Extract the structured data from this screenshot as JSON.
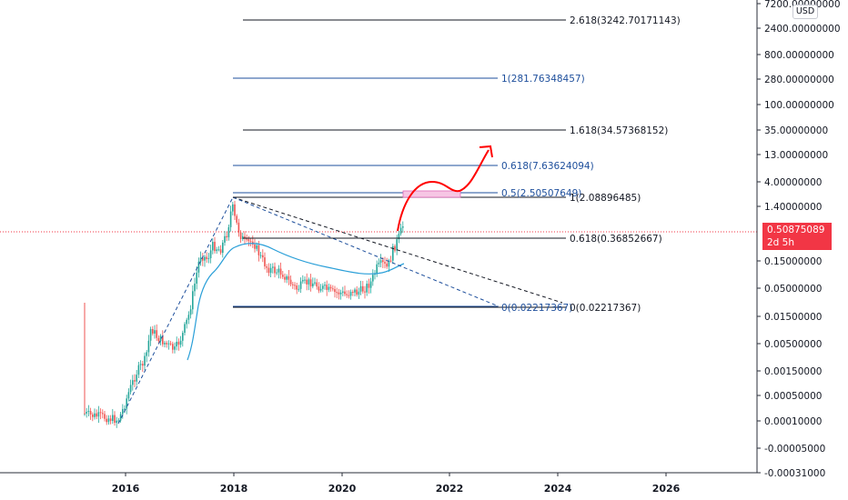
{
  "header": {
    "currency": "USD"
  },
  "price_tag": {
    "price": "0.50875089",
    "countdown": "2d 5h"
  },
  "chart_data": {
    "type": "candlestick",
    "yscale": "log",
    "y_axis_ticks": [
      {
        "label": "7200.00000000",
        "value": 7200
      },
      {
        "label": "2400.00000000",
        "value": 2400
      },
      {
        "label": "800.00000000",
        "value": 800
      },
      {
        "label": "280.00000000",
        "value": 280
      },
      {
        "label": "100.00000000",
        "value": 100
      },
      {
        "label": "35.00000000",
        "value": 35
      },
      {
        "label": "13.00000000",
        "value": 13
      },
      {
        "label": "4.00000000",
        "value": 4
      },
      {
        "label": "1.40000000",
        "value": 1.4
      },
      {
        "label": "0.15000000",
        "value": 0.15
      },
      {
        "label": "0.05000000",
        "value": 0.05
      },
      {
        "label": "0.01500000",
        "value": 0.015
      },
      {
        "label": "0.00500000",
        "value": 0.005
      },
      {
        "label": "0.00150000",
        "value": 0.0015
      },
      {
        "label": "0.00050000",
        "value": 0.0005
      },
      {
        "label": "0.00010000",
        "value": 0.0001
      },
      {
        "label": "-0.00005000",
        "value": -5e-05
      },
      {
        "label": "-0.00031000",
        "value": -0.00031
      }
    ],
    "x_axis_ticks": [
      "2016",
      "2018",
      "2020",
      "2022",
      "2024",
      "2026"
    ],
    "last_price": 0.50875089,
    "fib_levels": [
      {
        "label": "2.618(3242.70171143)",
        "color": "#131722"
      },
      {
        "label": "1(281.76348457)",
        "color": "#1e4f9c"
      },
      {
        "label": "1.618(34.57368152)",
        "color": "#131722"
      },
      {
        "label": "0.618(7.63624094)",
        "color": "#1e4f9c"
      },
      {
        "label": "0.5(2.50507649)",
        "color": "#1e4f9c"
      },
      {
        "label": "1(2.08896485)",
        "color": "#131722"
      },
      {
        "label": "0.618(0.36852667)",
        "color": "#131722"
      },
      {
        "label": "0(0.02217367)",
        "color": "#1e4f9c"
      },
      {
        "label": "0(0.02217367)",
        "color": "#131722"
      }
    ],
    "colors": {
      "up": "#26a69a",
      "down": "#ef5350",
      "moving_average": "#2a9fd8",
      "projection_arrow": "#ff0000",
      "price_line": "#f23645"
    }
  }
}
